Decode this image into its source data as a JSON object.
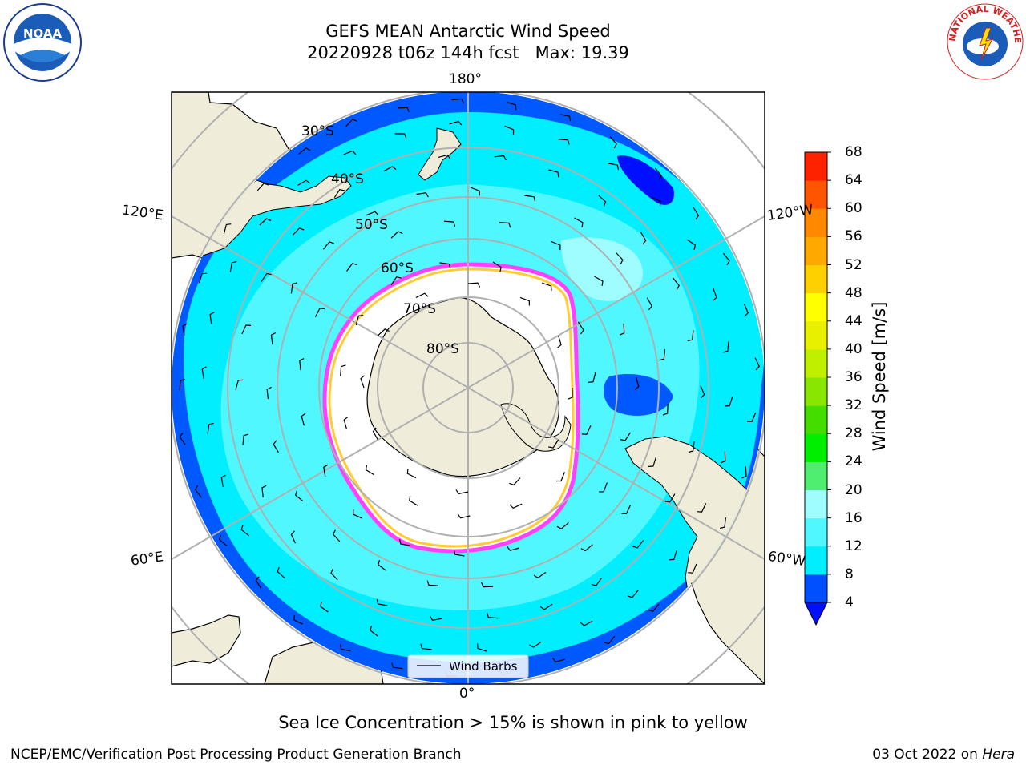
{
  "header": {
    "title_line1": "GEFS MEAN Antarctic Wind Speed",
    "title_line2": "20220928 t06z 144h fcst   Max: 19.39"
  },
  "logos": {
    "left": "NOAA",
    "right": "NATIONAL WEATHER SERVICE"
  },
  "map": {
    "lon_labels": {
      "top": "180°",
      "bottom": "0°",
      "left_upper": "120°E",
      "left_lower": "60°E",
      "right_upper": "120°W",
      "right_lower": "60°W"
    },
    "lat_labels": [
      "30°S",
      "40°S",
      "50°S",
      "60°S",
      "70°S",
      "80°S"
    ],
    "legend_label": "Wind Barbs",
    "colors": {
      "ocean_deep": "#0058ff",
      "ocean_mid": "#00eeff",
      "ocean_light": "#50f7ff",
      "land": "#efedd9",
      "ice_edge_pink": "#ff40ff",
      "ice_edge_yellow": "#ffcc33"
    }
  },
  "colorbar": {
    "label": "Wind Speed [m/s]",
    "ticks": [
      "4",
      "8",
      "12",
      "16",
      "20",
      "24",
      "28",
      "32",
      "36",
      "40",
      "44",
      "48",
      "52",
      "56",
      "60",
      "64",
      "68"
    ],
    "colors": [
      "#0050ff",
      "#00eeff",
      "#50f7ff",
      "#9ffcff",
      "#50ee70",
      "#00ee00",
      "#44dd00",
      "#88e600",
      "#c0f000",
      "#e8f000",
      "#ffff00",
      "#ffd000",
      "#ffa800",
      "#ff8800",
      "#ff5500",
      "#ff2200"
    ],
    "under_color": "#0010ff"
  },
  "footer": {
    "caption": "Sea Ice Concentration > 15% is shown in pink to yellow",
    "left": "NCEP/EMC/Verification Post Processing Product Generation Branch",
    "right_text": "03 Oct 2022 on ",
    "right_italic": "Hera"
  }
}
